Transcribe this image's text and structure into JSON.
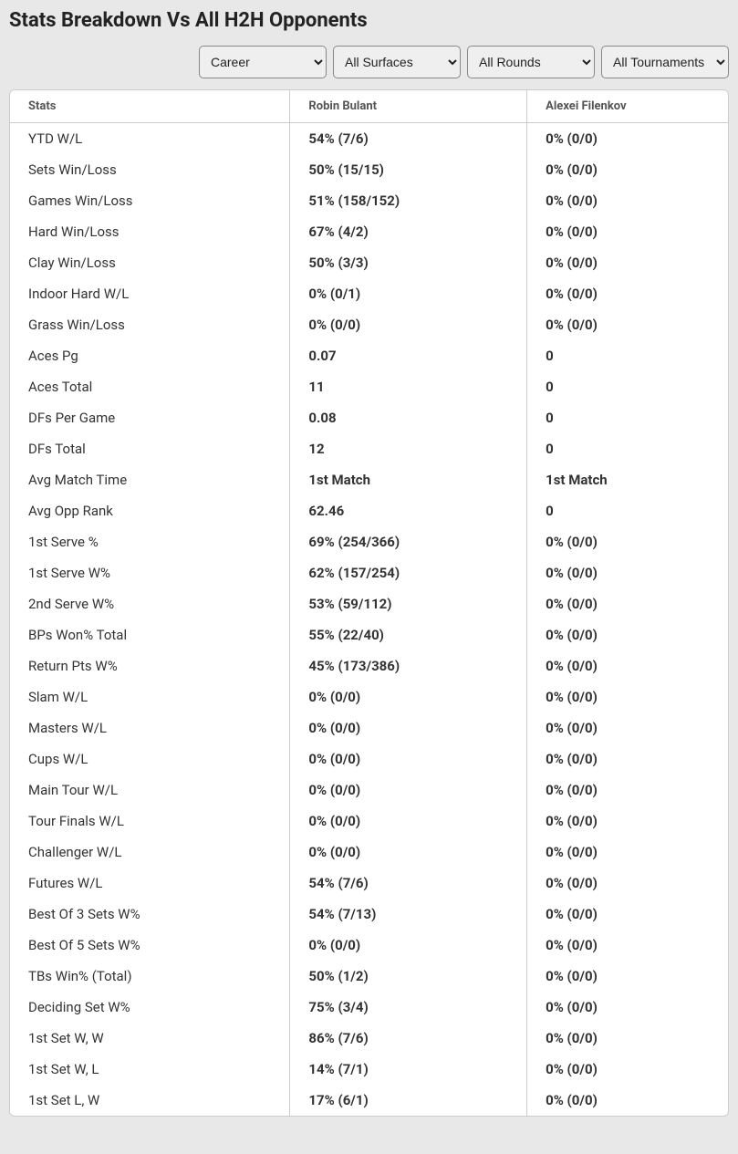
{
  "title": "Stats Breakdown Vs All H2H Opponents",
  "filters": {
    "period": "Career",
    "surface": "All Surfaces",
    "rounds": "All Rounds",
    "tournaments": "All Tournaments"
  },
  "columns": {
    "stats": "Stats",
    "player1": "Robin Bulant",
    "player2": "Alexei Filenkov"
  },
  "rows": [
    {
      "label": "YTD W/L",
      "p1": "54% (7/6)",
      "p2": "0% (0/0)"
    },
    {
      "label": "Sets Win/Loss",
      "p1": "50% (15/15)",
      "p2": "0% (0/0)"
    },
    {
      "label": "Games Win/Loss",
      "p1": "51% (158/152)",
      "p2": "0% (0/0)"
    },
    {
      "label": "Hard Win/Loss",
      "p1": "67% (4/2)",
      "p2": "0% (0/0)"
    },
    {
      "label": "Clay Win/Loss",
      "p1": "50% (3/3)",
      "p2": "0% (0/0)"
    },
    {
      "label": "Indoor Hard W/L",
      "p1": "0% (0/1)",
      "p2": "0% (0/0)"
    },
    {
      "label": "Grass Win/Loss",
      "p1": "0% (0/0)",
      "p2": "0% (0/0)"
    },
    {
      "label": "Aces Pg",
      "p1": "0.07",
      "p2": "0"
    },
    {
      "label": "Aces Total",
      "p1": "11",
      "p2": "0"
    },
    {
      "label": "DFs Per Game",
      "p1": "0.08",
      "p2": "0"
    },
    {
      "label": "DFs Total",
      "p1": "12",
      "p2": "0"
    },
    {
      "label": "Avg Match Time",
      "p1": "1st Match",
      "p2": "1st Match"
    },
    {
      "label": "Avg Opp Rank",
      "p1": "62.46",
      "p2": "0"
    },
    {
      "label": "1st Serve %",
      "p1": "69% (254/366)",
      "p2": "0% (0/0)"
    },
    {
      "label": "1st Serve W%",
      "p1": "62% (157/254)",
      "p2": "0% (0/0)"
    },
    {
      "label": "2nd Serve W%",
      "p1": "53% (59/112)",
      "p2": "0% (0/0)"
    },
    {
      "label": "BPs Won% Total",
      "p1": "55% (22/40)",
      "p2": "0% (0/0)"
    },
    {
      "label": "Return Pts W%",
      "p1": "45% (173/386)",
      "p2": "0% (0/0)"
    },
    {
      "label": "Slam W/L",
      "p1": "0% (0/0)",
      "p2": "0% (0/0)"
    },
    {
      "label": "Masters W/L",
      "p1": "0% (0/0)",
      "p2": "0% (0/0)"
    },
    {
      "label": "Cups W/L",
      "p1": "0% (0/0)",
      "p2": "0% (0/0)"
    },
    {
      "label": "Main Tour W/L",
      "p1": "0% (0/0)",
      "p2": "0% (0/0)"
    },
    {
      "label": "Tour Finals W/L",
      "p1": "0% (0/0)",
      "p2": "0% (0/0)"
    },
    {
      "label": "Challenger W/L",
      "p1": "0% (0/0)",
      "p2": "0% (0/0)"
    },
    {
      "label": "Futures W/L",
      "p1": "54% (7/6)",
      "p2": "0% (0/0)"
    },
    {
      "label": "Best Of 3 Sets W%",
      "p1": "54% (7/13)",
      "p2": "0% (0/0)"
    },
    {
      "label": "Best Of 5 Sets W%",
      "p1": "0% (0/0)",
      "p2": "0% (0/0)"
    },
    {
      "label": "TBs Win% (Total)",
      "p1": "50% (1/2)",
      "p2": "0% (0/0)"
    },
    {
      "label": "Deciding Set W%",
      "p1": "75% (3/4)",
      "p2": "0% (0/0)"
    },
    {
      "label": "1st Set W, W",
      "p1": "86% (7/6)",
      "p2": "0% (0/0)"
    },
    {
      "label": "1st Set W, L",
      "p1": "14% (7/1)",
      "p2": "0% (0/0)"
    },
    {
      "label": "1st Set L, W",
      "p1": "17% (6/1)",
      "p2": "0% (0/0)"
    }
  ]
}
